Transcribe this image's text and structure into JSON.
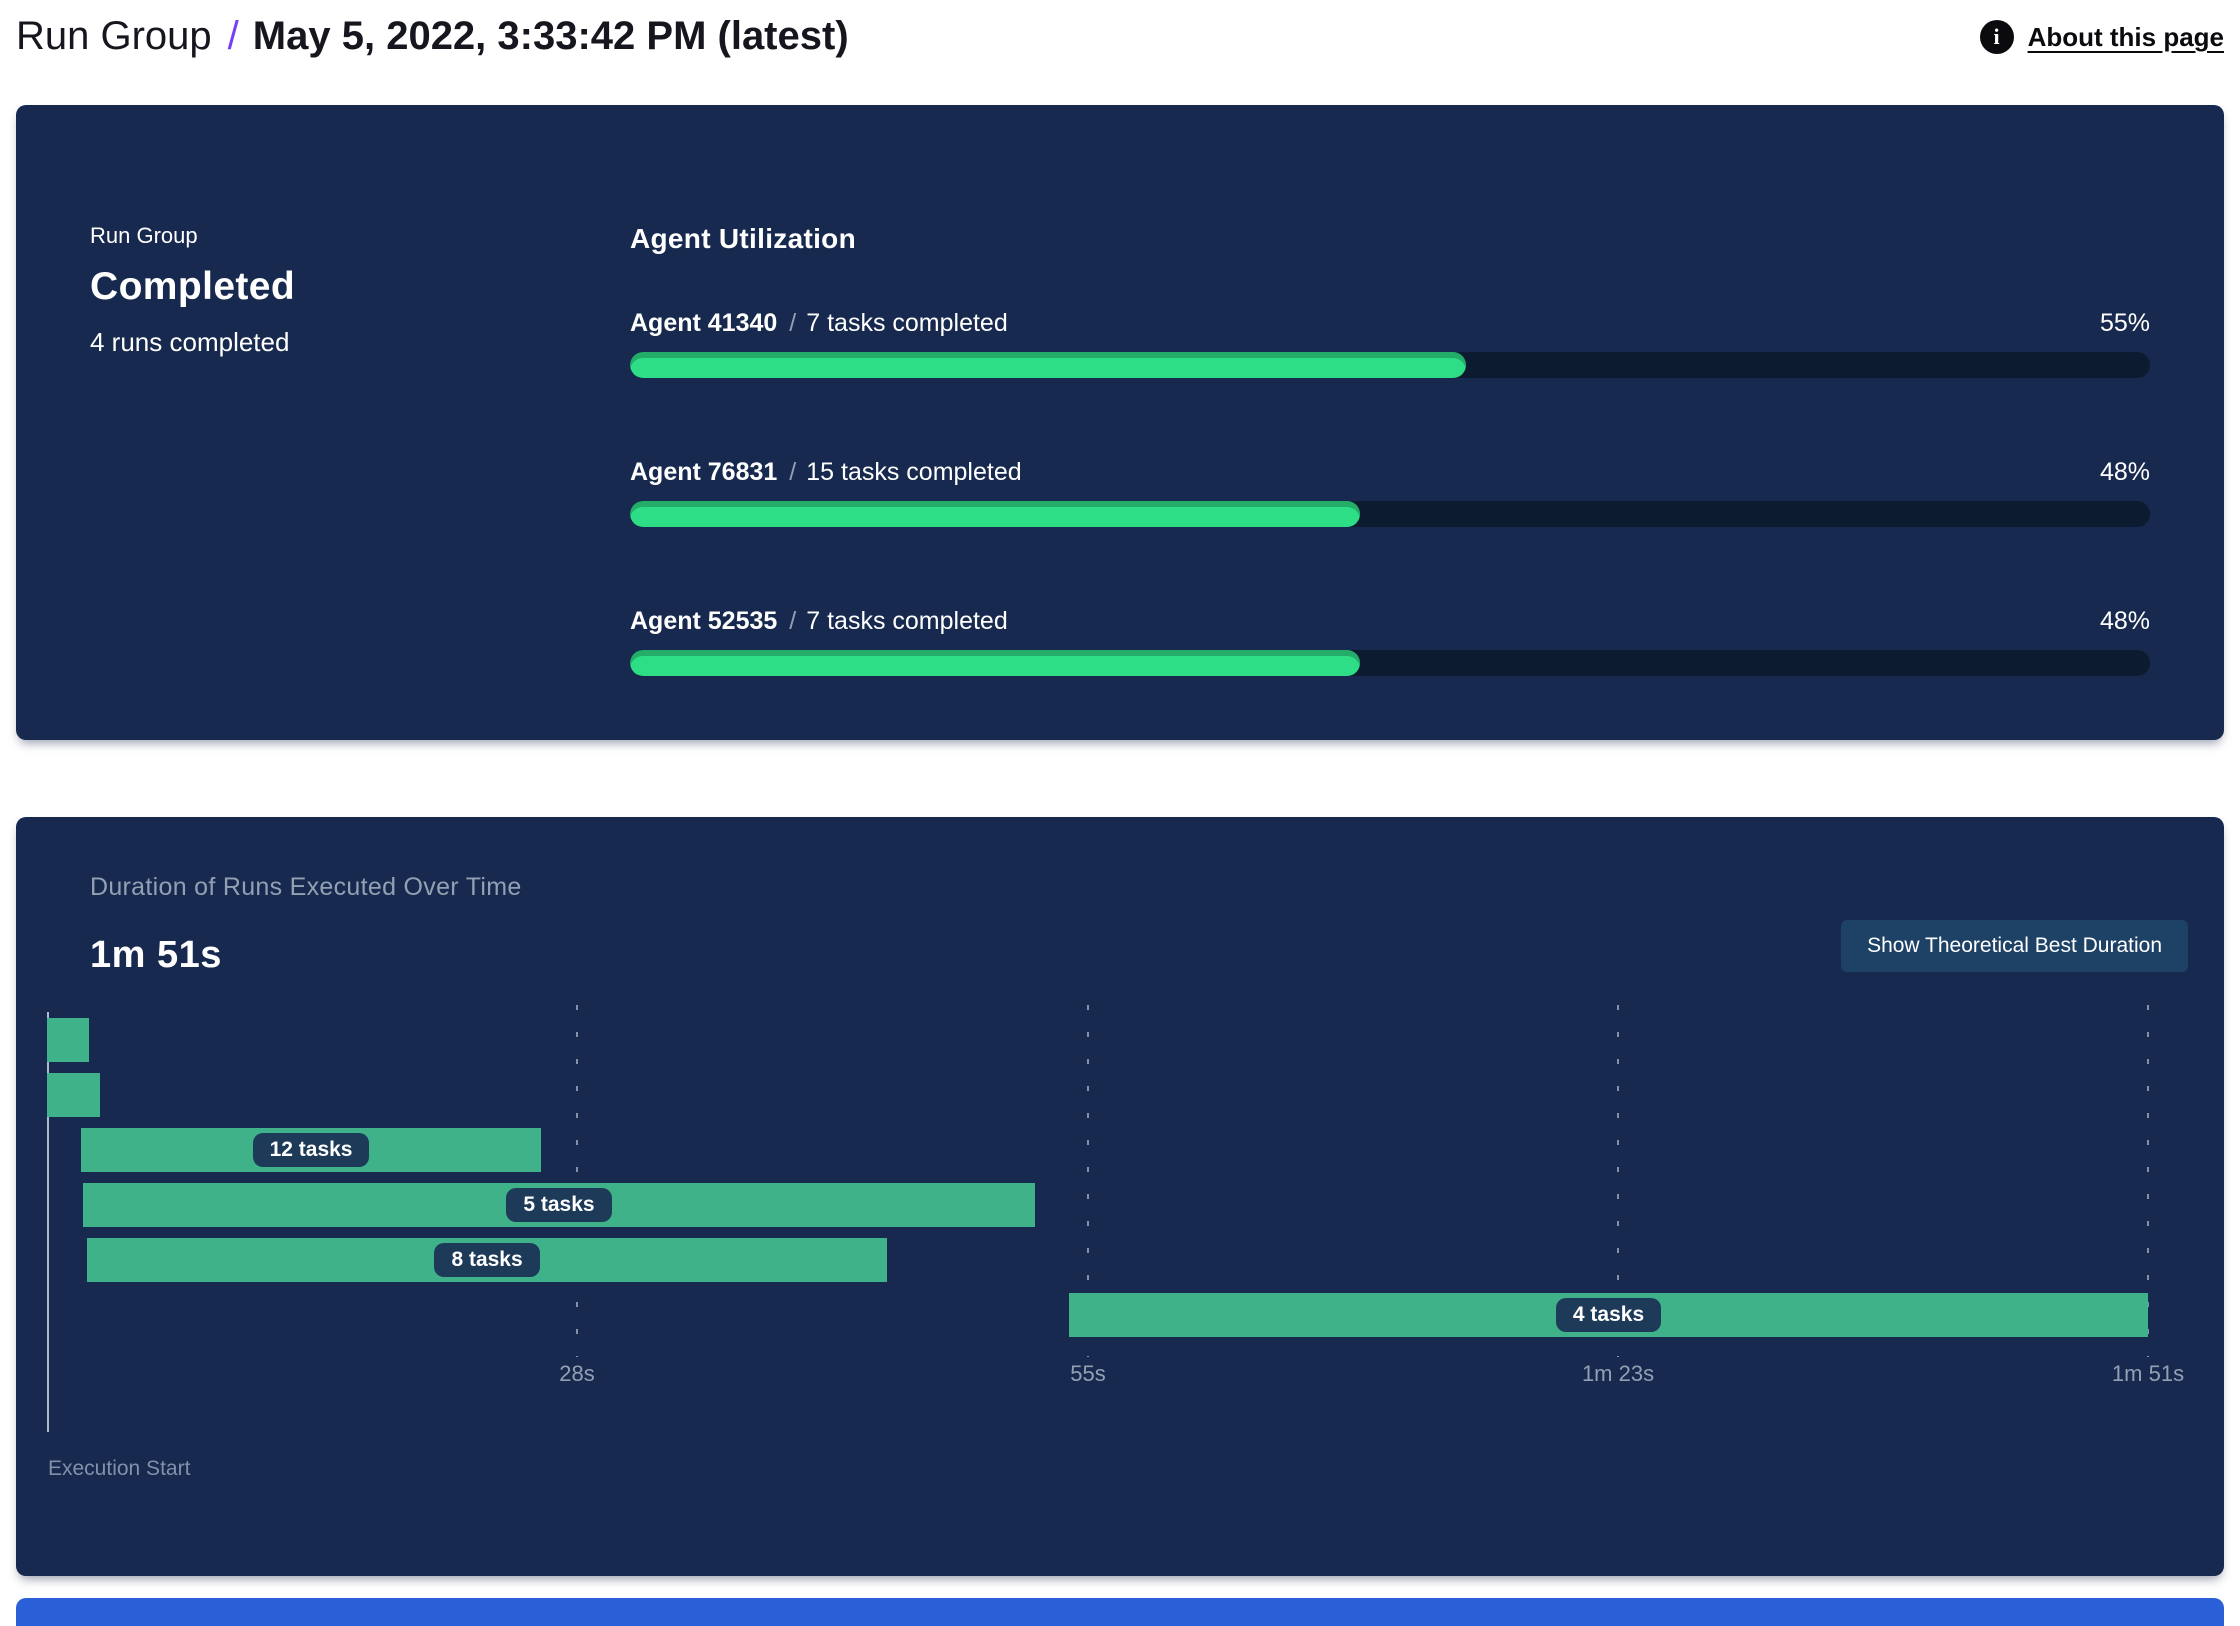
{
  "header": {
    "breadcrumb": "Run Group",
    "separator": "/",
    "run_date": "May 5, 2022, 3:33:42 PM (latest)",
    "about_label": "About this page",
    "info_icon_glyph": "i"
  },
  "colors": {
    "panel_bg": "#17294e",
    "accent_purple": "#7440f5",
    "progress_green": "#2dde87",
    "gantt_green": "#3fb28a",
    "track_dark": "#0d1b30",
    "button_bg": "#1e4166",
    "pill_bg": "#1d3a58",
    "muted_text": "#93a0b3",
    "next_panel_blue": "#2a5fd7"
  },
  "summary": {
    "eyebrow": "Run Group",
    "status": "Completed",
    "runs_completed": "4 runs completed",
    "utilization_title": "Agent Utilization",
    "agents": [
      {
        "name": "Agent 41340",
        "separator": "/",
        "tasks": "7 tasks completed",
        "percent_label": "55%",
        "utilization_pct": 55
      },
      {
        "name": "Agent 76831",
        "separator": "/",
        "tasks": "15 tasks completed",
        "percent_label": "48%",
        "utilization_pct": 48
      },
      {
        "name": "Agent 52535",
        "separator": "/",
        "tasks": "7 tasks completed",
        "percent_label": "48%",
        "utilization_pct": 48
      }
    ]
  },
  "duration": {
    "title": "Duration of Runs Executed Over Time",
    "total": "1m 51s",
    "button_label": "Show Theoretical Best Duration",
    "origin_label": "Execution Start"
  },
  "chart_data": [
    {
      "type": "bar",
      "title": "Agent Utilization",
      "categories": [
        "Agent 41340",
        "Agent 76831",
        "Agent 52535"
      ],
      "values": [
        55,
        48,
        48
      ],
      "unit": "%",
      "xlim": [
        0,
        100
      ],
      "annotations": [
        "7 tasks completed",
        "15 tasks completed",
        "7 tasks completed"
      ]
    },
    {
      "type": "gantt",
      "title": "Duration of Runs Executed Over Time",
      "total_duration_label": "1m 51s",
      "total_duration_s": 111,
      "x_ticks": [
        {
          "label": "28s",
          "t": 28
        },
        {
          "label": "55s",
          "t": 55
        },
        {
          "label": "1m 23s",
          "t": 83
        },
        {
          "label": "1m 51s",
          "t": 111
        }
      ],
      "runs": [
        {
          "start_s": 0,
          "end_s": 2.2,
          "label": ""
        },
        {
          "start_s": 0,
          "end_s": 2.8,
          "label": ""
        },
        {
          "start_s": 1.8,
          "end_s": 26.1,
          "label": "12 tasks"
        },
        {
          "start_s": 1.9,
          "end_s": 52.2,
          "label": "5 tasks"
        },
        {
          "start_s": 2.1,
          "end_s": 44.4,
          "label": "8 tasks"
        },
        {
          "start_s": 54,
          "end_s": 111,
          "label": "4 tasks"
        }
      ],
      "origin_label": "Execution Start",
      "gridlines": "dashed-vertical",
      "legend": "none"
    }
  ]
}
